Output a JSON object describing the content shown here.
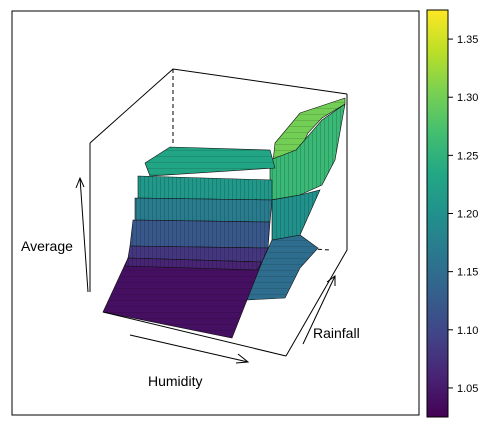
{
  "chart_data": {
    "type": "surface-3d",
    "xlabel": "Humidity",
    "ylabel": "Rainfall",
    "zlabel": "Average",
    "colorbar": {
      "colormap": "viridis",
      "range": [
        1.025,
        1.375
      ],
      "ticks": [
        "1.05",
        "1.10",
        "1.15",
        "1.20",
        "1.25",
        "1.30",
        "1.35"
      ],
      "tick_values": [
        1.05,
        1.1,
        1.15,
        1.2,
        1.25,
        1.3,
        1.35
      ]
    },
    "surface_levels": [
      {
        "region": "low humidity, low rainfall",
        "value": 1.03
      },
      {
        "region": "mid humidity plateau",
        "value": 1.21
      },
      {
        "region": "high humidity, low rainfall",
        "value": 1.17
      },
      {
        "region": "high humidity, high rainfall",
        "value": 1.3
      }
    ]
  }
}
